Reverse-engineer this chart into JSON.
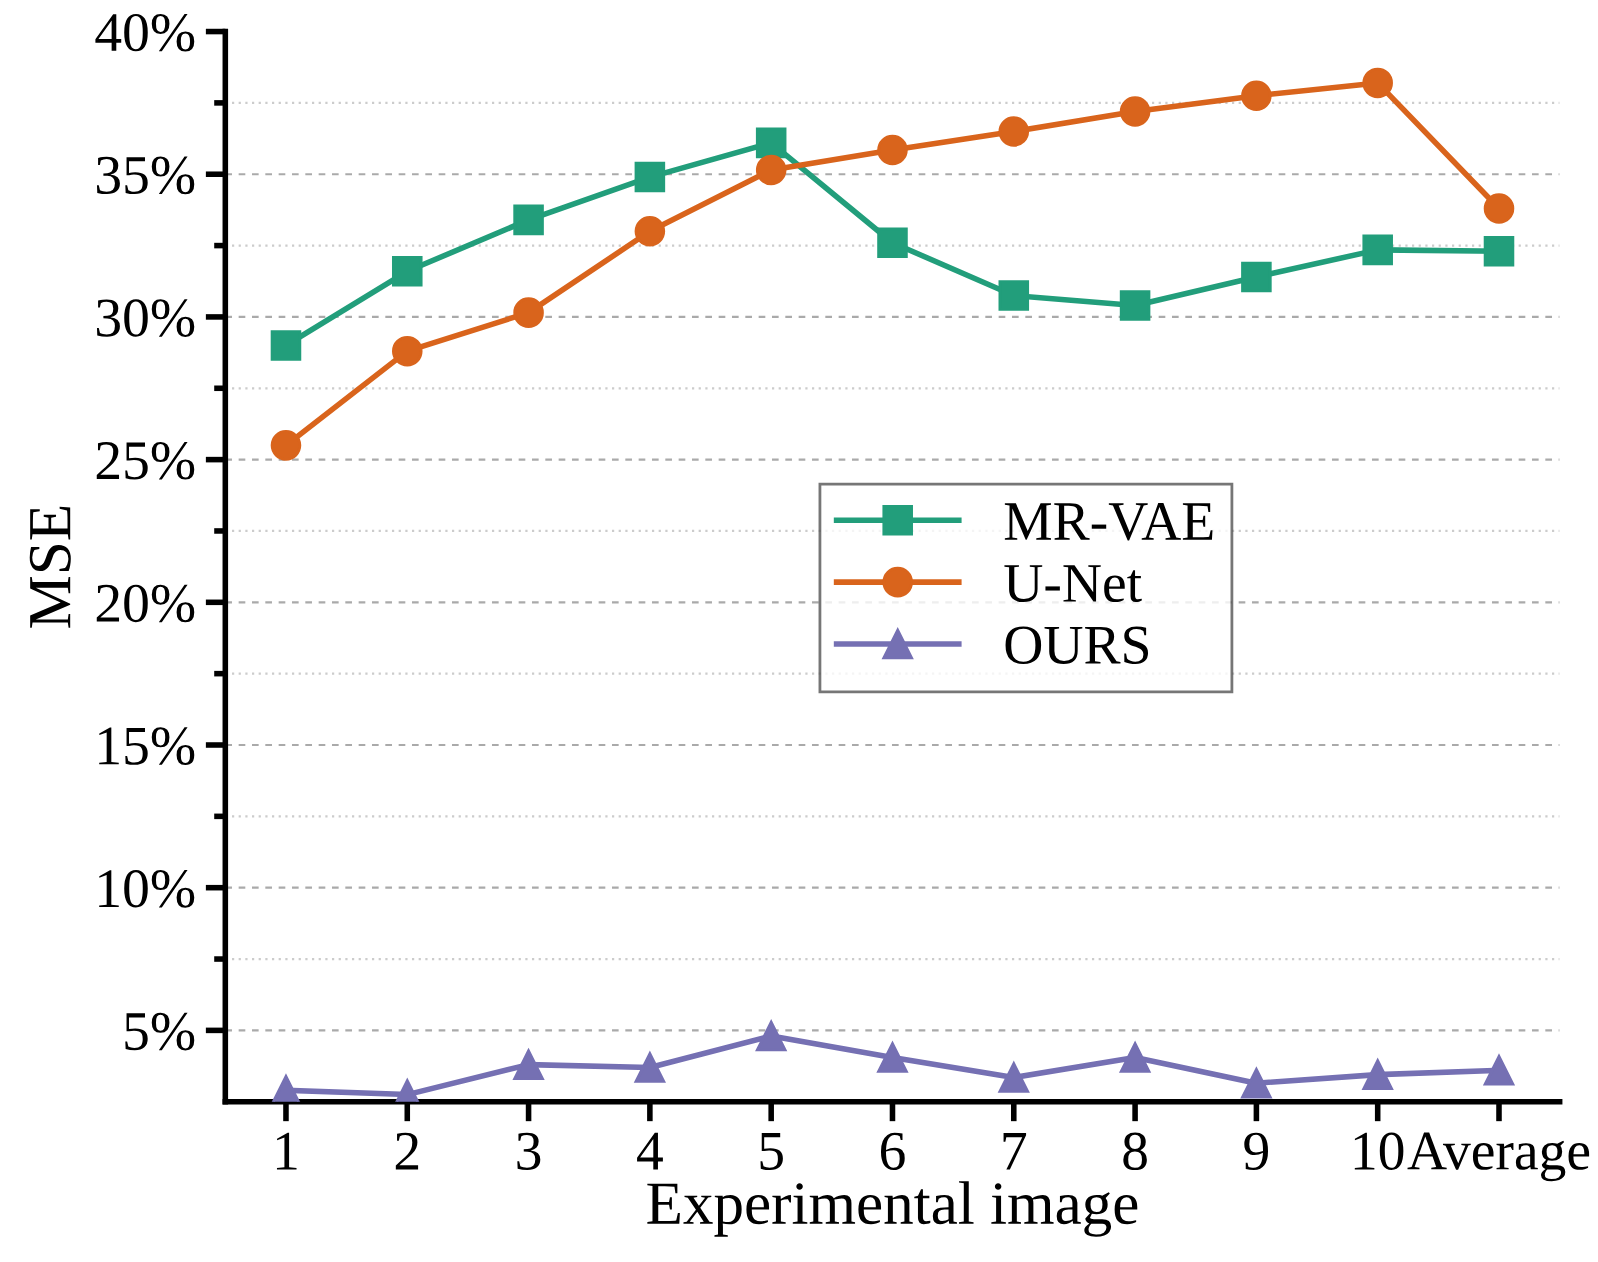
{
  "chart_data": {
    "type": "line",
    "xlabel": "Experimental image",
    "ylabel": "MSE",
    "categories": [
      "1",
      "2",
      "3",
      "4",
      "5",
      "6",
      "7",
      "8",
      "9",
      "10",
      "Average"
    ],
    "series": [
      {
        "name": "MR-VAE",
        "color": "#229e7b",
        "marker": "square",
        "values": [
          29.0,
          31.6,
          33.4,
          34.9,
          36.1,
          32.6,
          30.75,
          30.4,
          31.4,
          32.35,
          32.3
        ]
      },
      {
        "name": "U-Net",
        "color": "#d9641c",
        "marker": "circle",
        "values": [
          25.5,
          28.8,
          30.15,
          33.0,
          35.15,
          35.85,
          36.5,
          37.2,
          37.75,
          38.2,
          33.8
        ]
      },
      {
        "name": "OURS",
        "color": "#7570b3",
        "marker": "triangle",
        "values": [
          2.9,
          2.75,
          3.8,
          3.7,
          4.8,
          4.05,
          3.35,
          4.05,
          3.15,
          3.45,
          3.6
        ]
      }
    ],
    "ylim": [
      2.5,
      40
    ],
    "yticks": [
      {
        "value": 5,
        "label": "5%"
      },
      {
        "value": 7.5,
        "label": null
      },
      {
        "value": 10,
        "label": "10%"
      },
      {
        "value": 12.5,
        "label": null
      },
      {
        "value": 15,
        "label": "15%"
      },
      {
        "value": 17.5,
        "label": null
      },
      {
        "value": 20,
        "label": "20%"
      },
      {
        "value": 22.5,
        "label": null
      },
      {
        "value": 25,
        "label": "25%"
      },
      {
        "value": 27.5,
        "label": null
      },
      {
        "value": 30,
        "label": "30%"
      },
      {
        "value": 32.5,
        "label": null
      },
      {
        "value": 35,
        "label": "35%"
      },
      {
        "value": 37.5,
        "label": null
      },
      {
        "value": 40,
        "label": "40%"
      }
    ],
    "grid": "y",
    "legend": "center",
    "line_style": "solid"
  }
}
